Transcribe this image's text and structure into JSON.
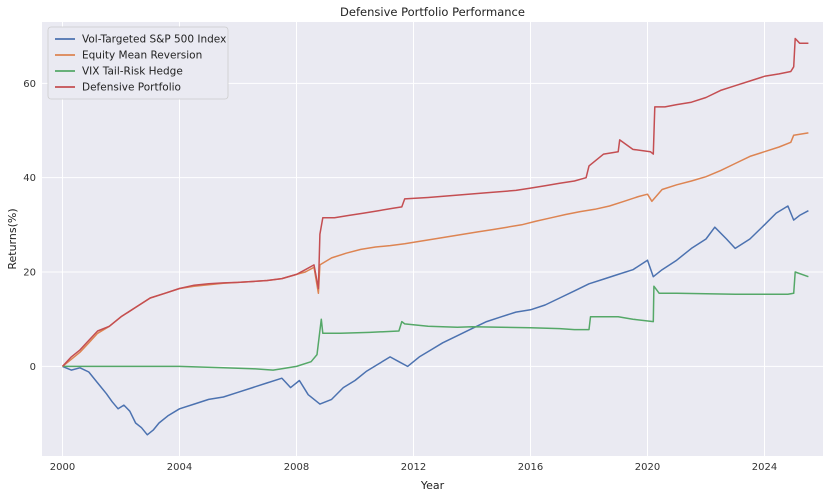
{
  "chart_data": {
    "type": "line",
    "title": "Defensive Portfolio Performance",
    "xlabel": "Year",
    "ylabel": "Returns(%)",
    "xlim": [
      1999.3,
      2026.0
    ],
    "ylim": [
      -19,
      73
    ],
    "xticks": [
      2000,
      2004,
      2008,
      2012,
      2016,
      2020,
      2024
    ],
    "yticks": [
      0,
      20,
      40,
      60
    ],
    "grid": true,
    "legend_position": "top-left",
    "background_color": "#EAEAF2",
    "series": [
      {
        "name": "Vol-Targeted S&P 500 Index",
        "color": "#4C72B0",
        "x": [
          2000.0,
          2000.3,
          2000.6,
          2000.9,
          2001.2,
          2001.5,
          2001.7,
          2001.9,
          2002.1,
          2002.3,
          2002.5,
          2002.7,
          2002.9,
          2003.1,
          2003.3,
          2003.6,
          2004.0,
          2004.5,
          2005.0,
          2005.5,
          2006.0,
          2006.5,
          2007.0,
          2007.5,
          2007.8,
          2008.1,
          2008.4,
          2008.8,
          2009.2,
          2009.6,
          2010.0,
          2010.4,
          2010.8,
          2011.2,
          2011.5,
          2011.8,
          2012.2,
          2012.6,
          2013.0,
          2013.5,
          2014.0,
          2014.5,
          2015.0,
          2015.5,
          2016.0,
          2016.5,
          2017.0,
          2017.5,
          2018.0,
          2018.5,
          2019.0,
          2019.5,
          2020.0,
          2020.2,
          2020.5,
          2021.0,
          2021.5,
          2022.0,
          2022.3,
          2022.7,
          2023.0,
          2023.5,
          2024.0,
          2024.4,
          2024.8,
          2025.0,
          2025.2,
          2025.5
        ],
        "y": [
          0.0,
          -0.8,
          -0.3,
          -1.2,
          -3.5,
          -5.8,
          -7.5,
          -9.0,
          -8.2,
          -9.5,
          -12.0,
          -13.0,
          -14.5,
          -13.5,
          -12.0,
          -10.5,
          -9.0,
          -8.0,
          -7.0,
          -6.5,
          -5.5,
          -4.5,
          -3.5,
          -2.5,
          -4.5,
          -3.0,
          -6.0,
          -8.0,
          -7.0,
          -4.5,
          -3.0,
          -1.0,
          0.5,
          2.0,
          1.0,
          0.0,
          2.0,
          3.5,
          5.0,
          6.5,
          8.0,
          9.5,
          10.5,
          11.5,
          12.0,
          13.0,
          14.5,
          16.0,
          17.5,
          18.5,
          19.5,
          20.5,
          22.5,
          19.0,
          20.5,
          22.5,
          25.0,
          27.0,
          29.5,
          27.0,
          25.0,
          27.0,
          30.0,
          32.5,
          34.0,
          31.0,
          32.0,
          33.0
        ]
      },
      {
        "name": "Equity Mean Reversion",
        "color": "#DD8452",
        "x": [
          2000.0,
          2000.3,
          2000.6,
          2000.9,
          2001.2,
          2001.6,
          2002.0,
          2002.5,
          2003.0,
          2003.5,
          2004.0,
          2004.5,
          2005.0,
          2005.5,
          2006.0,
          2006.5,
          2007.0,
          2007.5,
          2008.0,
          2008.3,
          2008.6,
          2008.75,
          2008.8,
          2009.2,
          2009.7,
          2010.2,
          2010.7,
          2011.2,
          2011.7,
          2012.2,
          2012.7,
          2013.2,
          2013.7,
          2014.2,
          2014.7,
          2015.2,
          2015.7,
          2016.2,
          2016.7,
          2017.2,
          2017.7,
          2018.2,
          2018.7,
          2019.2,
          2019.7,
          2020.0,
          2020.15,
          2020.5,
          2021.0,
          2021.5,
          2022.0,
          2022.5,
          2023.0,
          2023.5,
          2024.0,
          2024.5,
          2024.9,
          2025.0,
          2025.5
        ],
        "y": [
          0.0,
          1.5,
          3.0,
          5.0,
          7.0,
          8.5,
          10.5,
          12.5,
          14.5,
          15.5,
          16.5,
          17.0,
          17.3,
          17.6,
          17.8,
          18.0,
          18.2,
          18.6,
          19.5,
          20.0,
          21.0,
          15.5,
          21.5,
          23.0,
          24.0,
          24.8,
          25.3,
          25.6,
          26.0,
          26.5,
          27.0,
          27.5,
          28.0,
          28.5,
          29.0,
          29.5,
          30.0,
          30.8,
          31.5,
          32.2,
          32.8,
          33.3,
          34.0,
          35.0,
          36.0,
          36.5,
          35.0,
          37.5,
          38.5,
          39.3,
          40.2,
          41.5,
          43.0,
          44.5,
          45.5,
          46.5,
          47.5,
          49.0,
          49.5
        ]
      },
      {
        "name": "VIX Tail-Risk Hedge",
        "color": "#55A868",
        "x": [
          2000.0,
          2002.0,
          2004.0,
          2005.5,
          2006.5,
          2007.2,
          2007.5,
          2008.0,
          2008.5,
          2008.7,
          2008.85,
          2008.9,
          2009.5,
          2010.5,
          2011.5,
          2011.6,
          2011.7,
          2012.5,
          2013.5,
          2014.0,
          2015.0,
          2016.0,
          2017.0,
          2017.5,
          2018.0,
          2018.05,
          2019.0,
          2019.5,
          2020.2,
          2020.22,
          2020.4,
          2021.0,
          2022.0,
          2023.0,
          2024.0,
          2024.8,
          2025.0,
          2025.05,
          2025.5
        ],
        "y": [
          0.0,
          0.0,
          0.0,
          -0.3,
          -0.5,
          -0.8,
          -0.5,
          0.0,
          1.0,
          2.5,
          10.0,
          7.0,
          7.0,
          7.2,
          7.5,
          9.5,
          9.0,
          8.5,
          8.3,
          8.4,
          8.3,
          8.2,
          8.0,
          7.8,
          7.8,
          10.5,
          10.5,
          10.0,
          9.5,
          17.0,
          15.5,
          15.5,
          15.4,
          15.3,
          15.3,
          15.3,
          15.5,
          20.0,
          19.0
        ]
      },
      {
        "name": "Defensive Portfolio",
        "color": "#C44E52",
        "x": [
          2000.0,
          2000.3,
          2000.6,
          2000.9,
          2001.2,
          2001.6,
          2002.0,
          2002.5,
          2003.0,
          2003.5,
          2004.0,
          2004.5,
          2005.0,
          2005.5,
          2006.0,
          2006.5,
          2007.0,
          2007.5,
          2008.0,
          2008.3,
          2008.6,
          2008.75,
          2008.8,
          2008.9,
          2009.3,
          2009.8,
          2010.3,
          2010.8,
          2011.3,
          2011.6,
          2011.7,
          2012.5,
          2013.5,
          2014.5,
          2015.5,
          2016.0,
          2016.5,
          2017.0,
          2017.5,
          2017.9,
          2018.0,
          2018.5,
          2019.0,
          2019.05,
          2019.5,
          2020.1,
          2020.2,
          2020.25,
          2020.6,
          2021.0,
          2021.5,
          2022.0,
          2022.5,
          2023.0,
          2023.5,
          2024.0,
          2024.5,
          2024.9,
          2025.0,
          2025.05,
          2025.2,
          2025.5
        ],
        "y": [
          0.0,
          2.0,
          3.5,
          5.5,
          7.5,
          8.5,
          10.5,
          12.5,
          14.5,
          15.5,
          16.5,
          17.2,
          17.5,
          17.7,
          17.8,
          18.0,
          18.2,
          18.6,
          19.5,
          20.5,
          21.5,
          16.5,
          28.0,
          31.5,
          31.5,
          32.0,
          32.5,
          33.0,
          33.5,
          33.8,
          35.5,
          35.8,
          36.3,
          36.8,
          37.3,
          37.8,
          38.3,
          38.8,
          39.3,
          40.0,
          42.5,
          45.0,
          45.5,
          48.0,
          46.0,
          45.5,
          45.0,
          55.0,
          55.0,
          55.5,
          56.0,
          57.0,
          58.5,
          59.5,
          60.5,
          61.5,
          62.0,
          62.5,
          63.5,
          69.5,
          68.5,
          68.5
        ]
      }
    ]
  }
}
